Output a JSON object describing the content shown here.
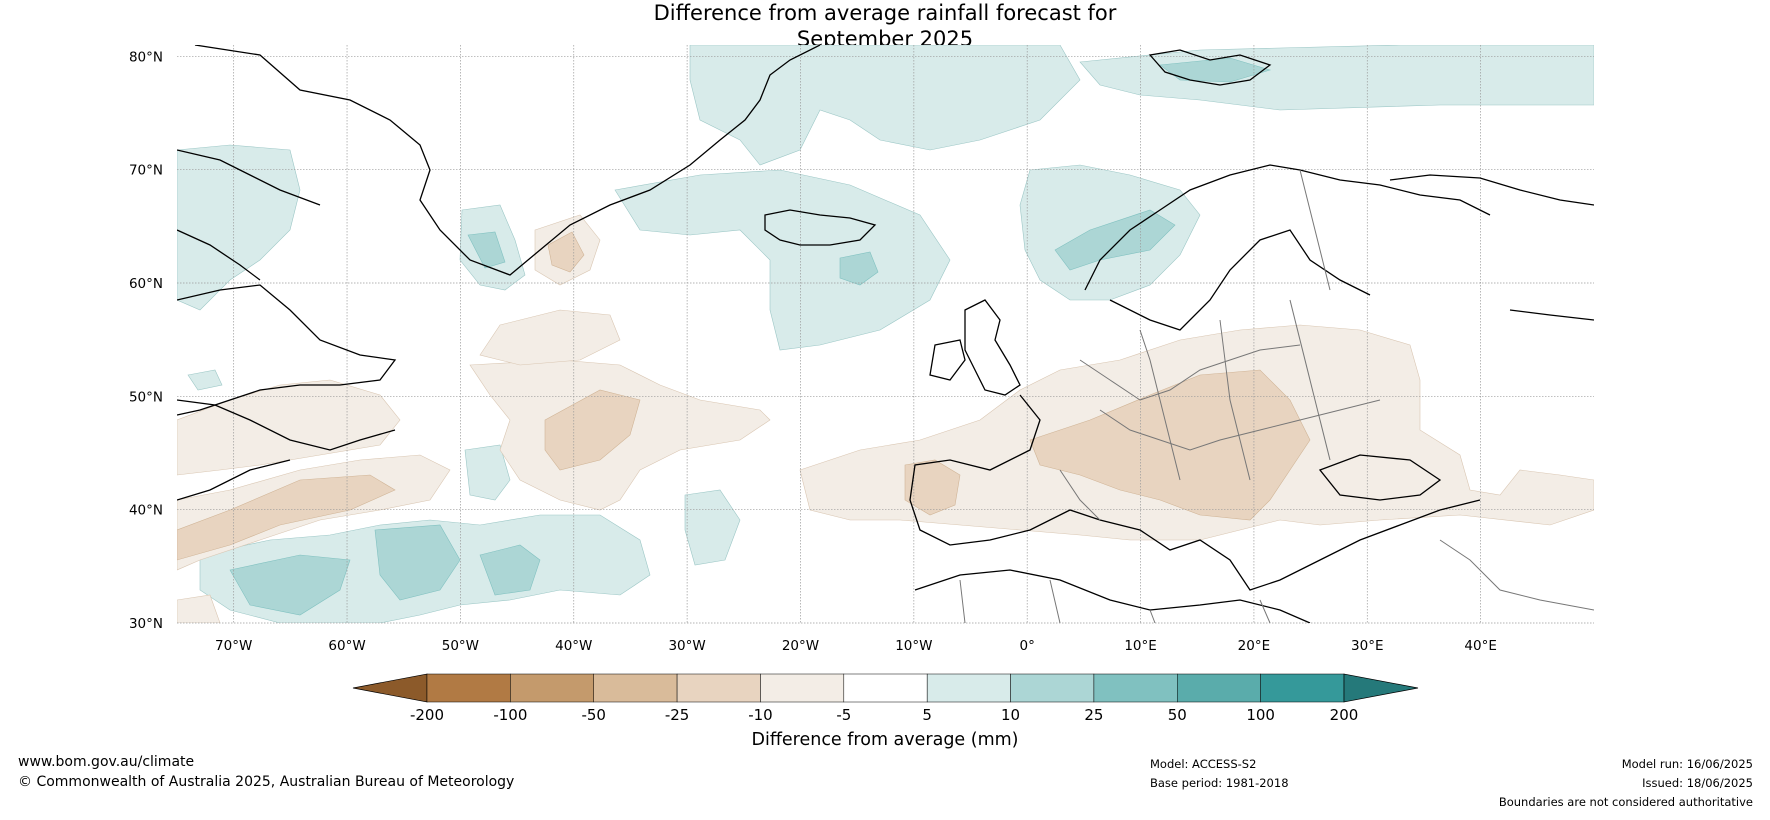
{
  "title": {
    "line1": "Difference from average rainfall forecast for",
    "line2": "September 2025"
  },
  "map": {
    "lat_labels": [
      "80°N",
      "70°N",
      "60°N",
      "50°N",
      "40°N",
      "30°N"
    ],
    "lon_labels": [
      "70°W",
      "60°W",
      "50°W",
      "40°W",
      "30°W",
      "20°W",
      "10°W",
      "0°",
      "10°E",
      "20°E",
      "30°E",
      "40°E"
    ],
    "lat_range": [
      30,
      81
    ],
    "lon_range": [
      -75,
      50
    ]
  },
  "colorbar": {
    "label": "Difference from average (mm)",
    "ticks": [
      "-200",
      "-100",
      "-50",
      "-25",
      "-10",
      "-5",
      "5",
      "10",
      "25",
      "50",
      "100",
      "200"
    ],
    "colors": [
      "#8c5a2a",
      "#b17a44",
      "#c49a6c",
      "#d9bb9a",
      "#e8d4c0",
      "#f3ede6",
      "#ffffff",
      "#d8ebea",
      "#acd6d5",
      "#80c1c0",
      "#5aacab",
      "#35999a",
      "#25797a"
    ]
  },
  "footer": {
    "website": "www.bom.gov.au/climate",
    "copyright": "© Commonwealth of Australia 2025, Australian Bureau of Meteorology",
    "model": "Model: ACCESS-S2",
    "base_period": "Base period: 1981-2018",
    "model_run": "Model run: 16/06/2025",
    "issued": "Issued: 18/06/2025",
    "disclaimer": "Boundaries are not considered authoritative"
  }
}
